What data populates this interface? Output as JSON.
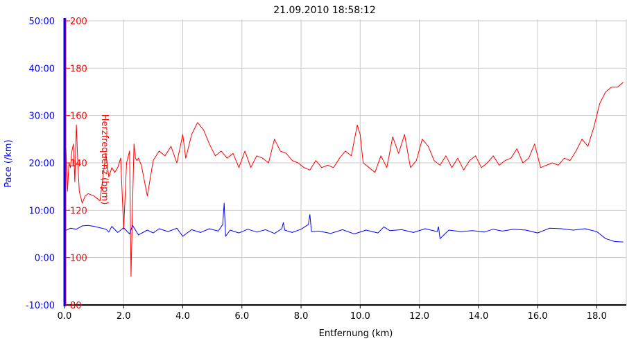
{
  "chart_data": {
    "type": "line",
    "title": "21.09.2010 18:58:12",
    "xlabel": "Entfernung (km)",
    "xlim": [
      0,
      19
    ],
    "x_ticks": [
      "0.0",
      "2.0",
      "4.0",
      "6.0",
      "8.0",
      "10.0",
      "12.0",
      "14.0",
      "16.0",
      "18.0"
    ],
    "grid": true,
    "y_axes": [
      {
        "label": "Pace (/km)",
        "color": "#0000ff",
        "ylim": [
          -10,
          50
        ],
        "ticks": [
          "-10:00",
          "0:00",
          "10:00",
          "20:00",
          "30:00",
          "40:00",
          "50:00"
        ]
      },
      {
        "label": "Herzfrequenz (bpm)",
        "color": "#ff0000",
        "ylim": [
          80,
          200
        ],
        "ticks": [
          "80",
          "100",
          "120",
          "140",
          "160",
          "180",
          "200"
        ]
      }
    ],
    "series": [
      {
        "color": "#ff0000",
        "axis": "Herzfrequenz (bpm)",
        "x": [
          0.0,
          0.05,
          0.1,
          0.15,
          0.2,
          0.25,
          0.3,
          0.35,
          0.4,
          0.45,
          0.5,
          0.6,
          0.7,
          0.8,
          1.0,
          1.2,
          1.4,
          1.5,
          1.6,
          1.7,
          1.8,
          1.9,
          2.0,
          2.1,
          2.2,
          2.25,
          2.3,
          2.35,
          2.4,
          2.45,
          2.5,
          2.6,
          2.8,
          3.0,
          3.2,
          3.4,
          3.6,
          3.8,
          4.0,
          4.1,
          4.3,
          4.5,
          4.7,
          4.9,
          5.1,
          5.3,
          5.5,
          5.7,
          5.9,
          6.1,
          6.3,
          6.5,
          6.7,
          6.9,
          7.1,
          7.3,
          7.5,
          7.7,
          7.9,
          8.1,
          8.3,
          8.5,
          8.7,
          8.9,
          9.1,
          9.3,
          9.5,
          9.7,
          9.9,
          10.0,
          10.1,
          10.3,
          10.5,
          10.7,
          10.9,
          11.1,
          11.3,
          11.5,
          11.7,
          11.9,
          12.1,
          12.3,
          12.5,
          12.7,
          12.9,
          13.1,
          13.3,
          13.5,
          13.7,
          13.9,
          14.1,
          14.3,
          14.5,
          14.7,
          14.9,
          15.1,
          15.3,
          15.5,
          15.7,
          15.9,
          16.1,
          16.3,
          16.5,
          16.7,
          16.9,
          17.1,
          17.3,
          17.5,
          17.7,
          17.9,
          18.1,
          18.3,
          18.5,
          18.7,
          18.9
        ],
        "values": [
          120,
          146,
          128,
          140,
          138,
          145,
          148,
          132,
          156,
          140,
          128,
          123,
          126,
          127,
          126,
          124,
          144,
          134,
          138,
          136,
          138,
          142,
          112,
          140,
          145,
          92,
          122,
          148,
          142,
          141,
          142,
          139,
          126,
          141,
          145,
          143,
          147,
          140,
          152,
          142,
          152,
          157,
          154,
          148,
          143,
          145,
          142,
          144,
          138,
          145,
          138,
          143,
          142,
          140,
          150,
          145,
          144,
          141,
          140,
          138,
          137,
          141,
          138,
          139,
          138,
          142,
          145,
          143,
          156,
          152,
          140,
          138,
          136,
          143,
          138,
          151,
          144,
          152,
          138,
          141,
          150,
          147,
          141,
          139,
          143,
          138,
          142,
          137,
          141,
          143,
          138,
          140,
          143,
          139,
          141,
          142,
          146,
          140,
          142,
          148,
          138,
          139,
          140,
          139,
          142,
          141,
          145,
          150,
          147,
          155,
          165,
          170,
          172,
          172,
          174
        ],
        "style": "thin line"
      },
      {
        "color": "#0000ff",
        "axis": "Pace (/km)",
        "x": [
          0.0,
          0.2,
          0.4,
          0.6,
          0.8,
          1.0,
          1.2,
          1.4,
          1.5,
          1.6,
          1.8,
          2.0,
          2.2,
          2.3,
          2.5,
          2.8,
          3.0,
          3.2,
          3.5,
          3.8,
          4.0,
          4.3,
          4.6,
          4.9,
          5.2,
          5.35,
          5.4,
          5.45,
          5.6,
          5.9,
          6.2,
          6.5,
          6.8,
          7.1,
          7.35,
          7.4,
          7.45,
          7.7,
          8.0,
          8.25,
          8.3,
          8.35,
          8.6,
          9.0,
          9.4,
          9.8,
          10.2,
          10.6,
          10.8,
          11.0,
          11.4,
          11.8,
          12.2,
          12.6,
          12.65,
          12.7,
          13.0,
          13.4,
          13.8,
          14.2,
          14.5,
          14.8,
          15.2,
          15.6,
          16.0,
          16.4,
          16.8,
          17.2,
          17.6,
          18.0,
          18.3,
          18.6,
          18.9
        ],
        "values": [
          5.6,
          6.2,
          6.0,
          6.7,
          6.8,
          6.6,
          6.3,
          6.0,
          5.4,
          6.6,
          5.3,
          6.3,
          5.0,
          6.8,
          4.8,
          5.8,
          5.2,
          6.1,
          5.5,
          6.2,
          4.5,
          5.9,
          5.3,
          6.1,
          5.6,
          7.0,
          11.5,
          4.5,
          5.8,
          5.2,
          6.0,
          5.4,
          5.9,
          5.1,
          6.1,
          7.4,
          5.8,
          5.3,
          6.0,
          7.0,
          9.1,
          5.5,
          5.6,
          5.1,
          5.9,
          5.0,
          5.8,
          5.2,
          6.5,
          5.7,
          5.9,
          5.3,
          6.1,
          5.5,
          6.5,
          4.0,
          5.8,
          5.5,
          5.7,
          5.4,
          6.0,
          5.6,
          6.0,
          5.8,
          5.2,
          6.2,
          6.1,
          5.8,
          6.1,
          5.5,
          4.0,
          3.4,
          3.3
        ],
        "style": "thin line"
      }
    ]
  }
}
